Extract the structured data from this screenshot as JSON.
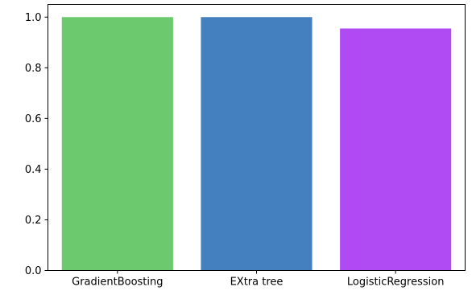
{
  "chart_data": {
    "type": "bar",
    "categories": [
      "GradientBoosting",
      "EXtra tree",
      "LogisticRegression"
    ],
    "values": [
      1.0,
      1.0,
      0.955
    ],
    "colors": [
      "#6cc96e",
      "#4480c0",
      "#b04bf4"
    ],
    "ylim": [
      0,
      1.05
    ],
    "yticks": [
      0.0,
      0.2,
      0.4,
      0.6,
      0.8,
      1.0
    ],
    "ytick_labels": [
      "0.0",
      "0.2",
      "0.4",
      "0.6",
      "0.8",
      "1.0"
    ],
    "grid": false,
    "title": "",
    "xlabel": "",
    "ylabel": ""
  }
}
